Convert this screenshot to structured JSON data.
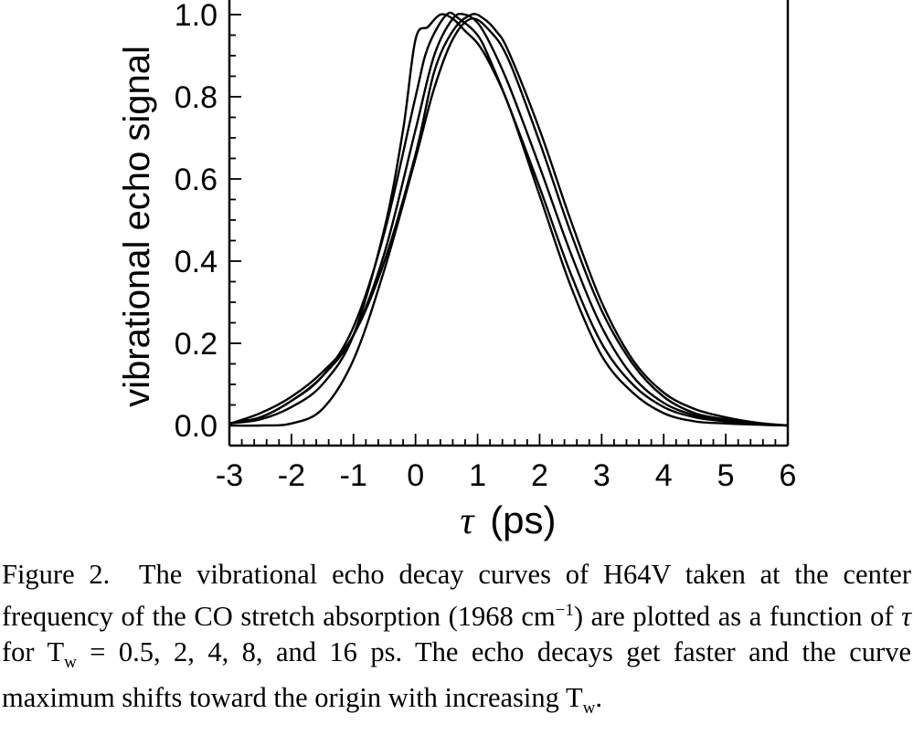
{
  "chart_data": {
    "type": "line",
    "title": "",
    "xlabel_symbol": "τ",
    "xlabel_unit": "(ps)",
    "ylabel": "vibrational echo signal",
    "xlim": [
      -3,
      6
    ],
    "ylim": [
      0,
      1.0
    ],
    "x_ticks": [
      "-3",
      "-2",
      "-1",
      "0",
      "1",
      "2",
      "3",
      "4",
      "5",
      "6"
    ],
    "y_ticks": [
      "0.0",
      "0.2",
      "0.4",
      "0.6",
      "0.8",
      "1.0"
    ],
    "grid": false,
    "series": [
      {
        "x": [
          -3,
          -2.5,
          -2,
          -1.5,
          -1,
          -0.5,
          -0.2,
          0,
          0.2,
          0.4,
          0.6,
          0.8,
          1.0,
          1.2,
          1.5,
          2,
          2.5,
          3,
          3.5,
          4,
          4.5,
          5,
          5.5,
          6
        ],
        "y": [
          0.005,
          0.015,
          0.045,
          0.1,
          0.22,
          0.48,
          0.72,
          0.94,
          0.97,
          1.0,
          0.99,
          0.96,
          0.93,
          0.88,
          0.78,
          0.56,
          0.34,
          0.17,
          0.08,
          0.03,
          0.01,
          0.005,
          0.002,
          0.0
        ]
      },
      {
        "x": [
          -3,
          -2.5,
          -2,
          -1.5,
          -1,
          -0.5,
          0,
          0.2,
          0.5,
          0.7,
          1.0,
          1.2,
          1.5,
          2,
          2.5,
          3,
          3.5,
          4,
          4.5,
          5,
          5.5,
          6
        ],
        "y": [
          0.005,
          0.02,
          0.06,
          0.12,
          0.24,
          0.47,
          0.8,
          0.92,
          1.0,
          0.99,
          0.95,
          0.89,
          0.78,
          0.58,
          0.37,
          0.2,
          0.1,
          0.045,
          0.02,
          0.01,
          0.003,
          0.0
        ]
      },
      {
        "x": [
          -3,
          -2.5,
          -2,
          -1.5,
          -1,
          -0.5,
          0,
          0.3,
          0.6,
          0.8,
          1.0,
          1.2,
          1.5,
          2,
          2.5,
          3,
          3.5,
          4,
          4.5,
          5,
          5.5,
          6
        ],
        "y": [
          0.005,
          0.02,
          0.06,
          0.12,
          0.22,
          0.42,
          0.72,
          0.9,
          0.99,
          1.0,
          0.98,
          0.93,
          0.83,
          0.63,
          0.42,
          0.24,
          0.12,
          0.055,
          0.025,
          0.012,
          0.004,
          0.0
        ]
      },
      {
        "x": [
          -3,
          -2.5,
          -2,
          -1.5,
          -1,
          -0.5,
          0,
          0.3,
          0.6,
          0.9,
          1.1,
          1.3,
          1.5,
          2,
          2.5,
          3,
          3.5,
          4,
          4.5,
          5,
          5.5,
          6
        ],
        "y": [
          0.004,
          0.03,
          0.07,
          0.13,
          0.22,
          0.4,
          0.66,
          0.86,
          0.96,
          1.0,
          0.99,
          0.96,
          0.91,
          0.72,
          0.5,
          0.3,
          0.16,
          0.08,
          0.04,
          0.02,
          0.007,
          0.0
        ]
      },
      {
        "x": [
          -3,
          -2.5,
          -2,
          -1.5,
          -1,
          -0.5,
          0,
          0.3,
          0.6,
          0.9,
          1.2,
          1.5,
          2,
          2.5,
          3,
          3.5,
          4,
          4.5,
          5,
          5.5,
          6
        ],
        "y": [
          0.0,
          0.0,
          0.005,
          0.04,
          0.16,
          0.38,
          0.65,
          0.82,
          0.94,
          0.99,
          0.96,
          0.89,
          0.69,
          0.47,
          0.28,
          0.15,
          0.07,
          0.03,
          0.015,
          0.005,
          0.0
        ]
      }
    ]
  },
  "caption": {
    "label": "Figure 2.",
    "text_1": "The vibrational echo decay curves of H64V taken at the center frequency of the CO stretch absorption (1968 cm",
    "sup": "−1",
    "text_2": ") are plotted as a function of ",
    "tau": "τ",
    "text_3": " for T",
    "sub_w": "w",
    "text_4": " = 0.5, 2, 4, 8, and 16 ps. The echo decays get faster and the curve maximum shifts toward the origin with increasing T",
    "sub_w2": "w",
    "text_5": "."
  }
}
